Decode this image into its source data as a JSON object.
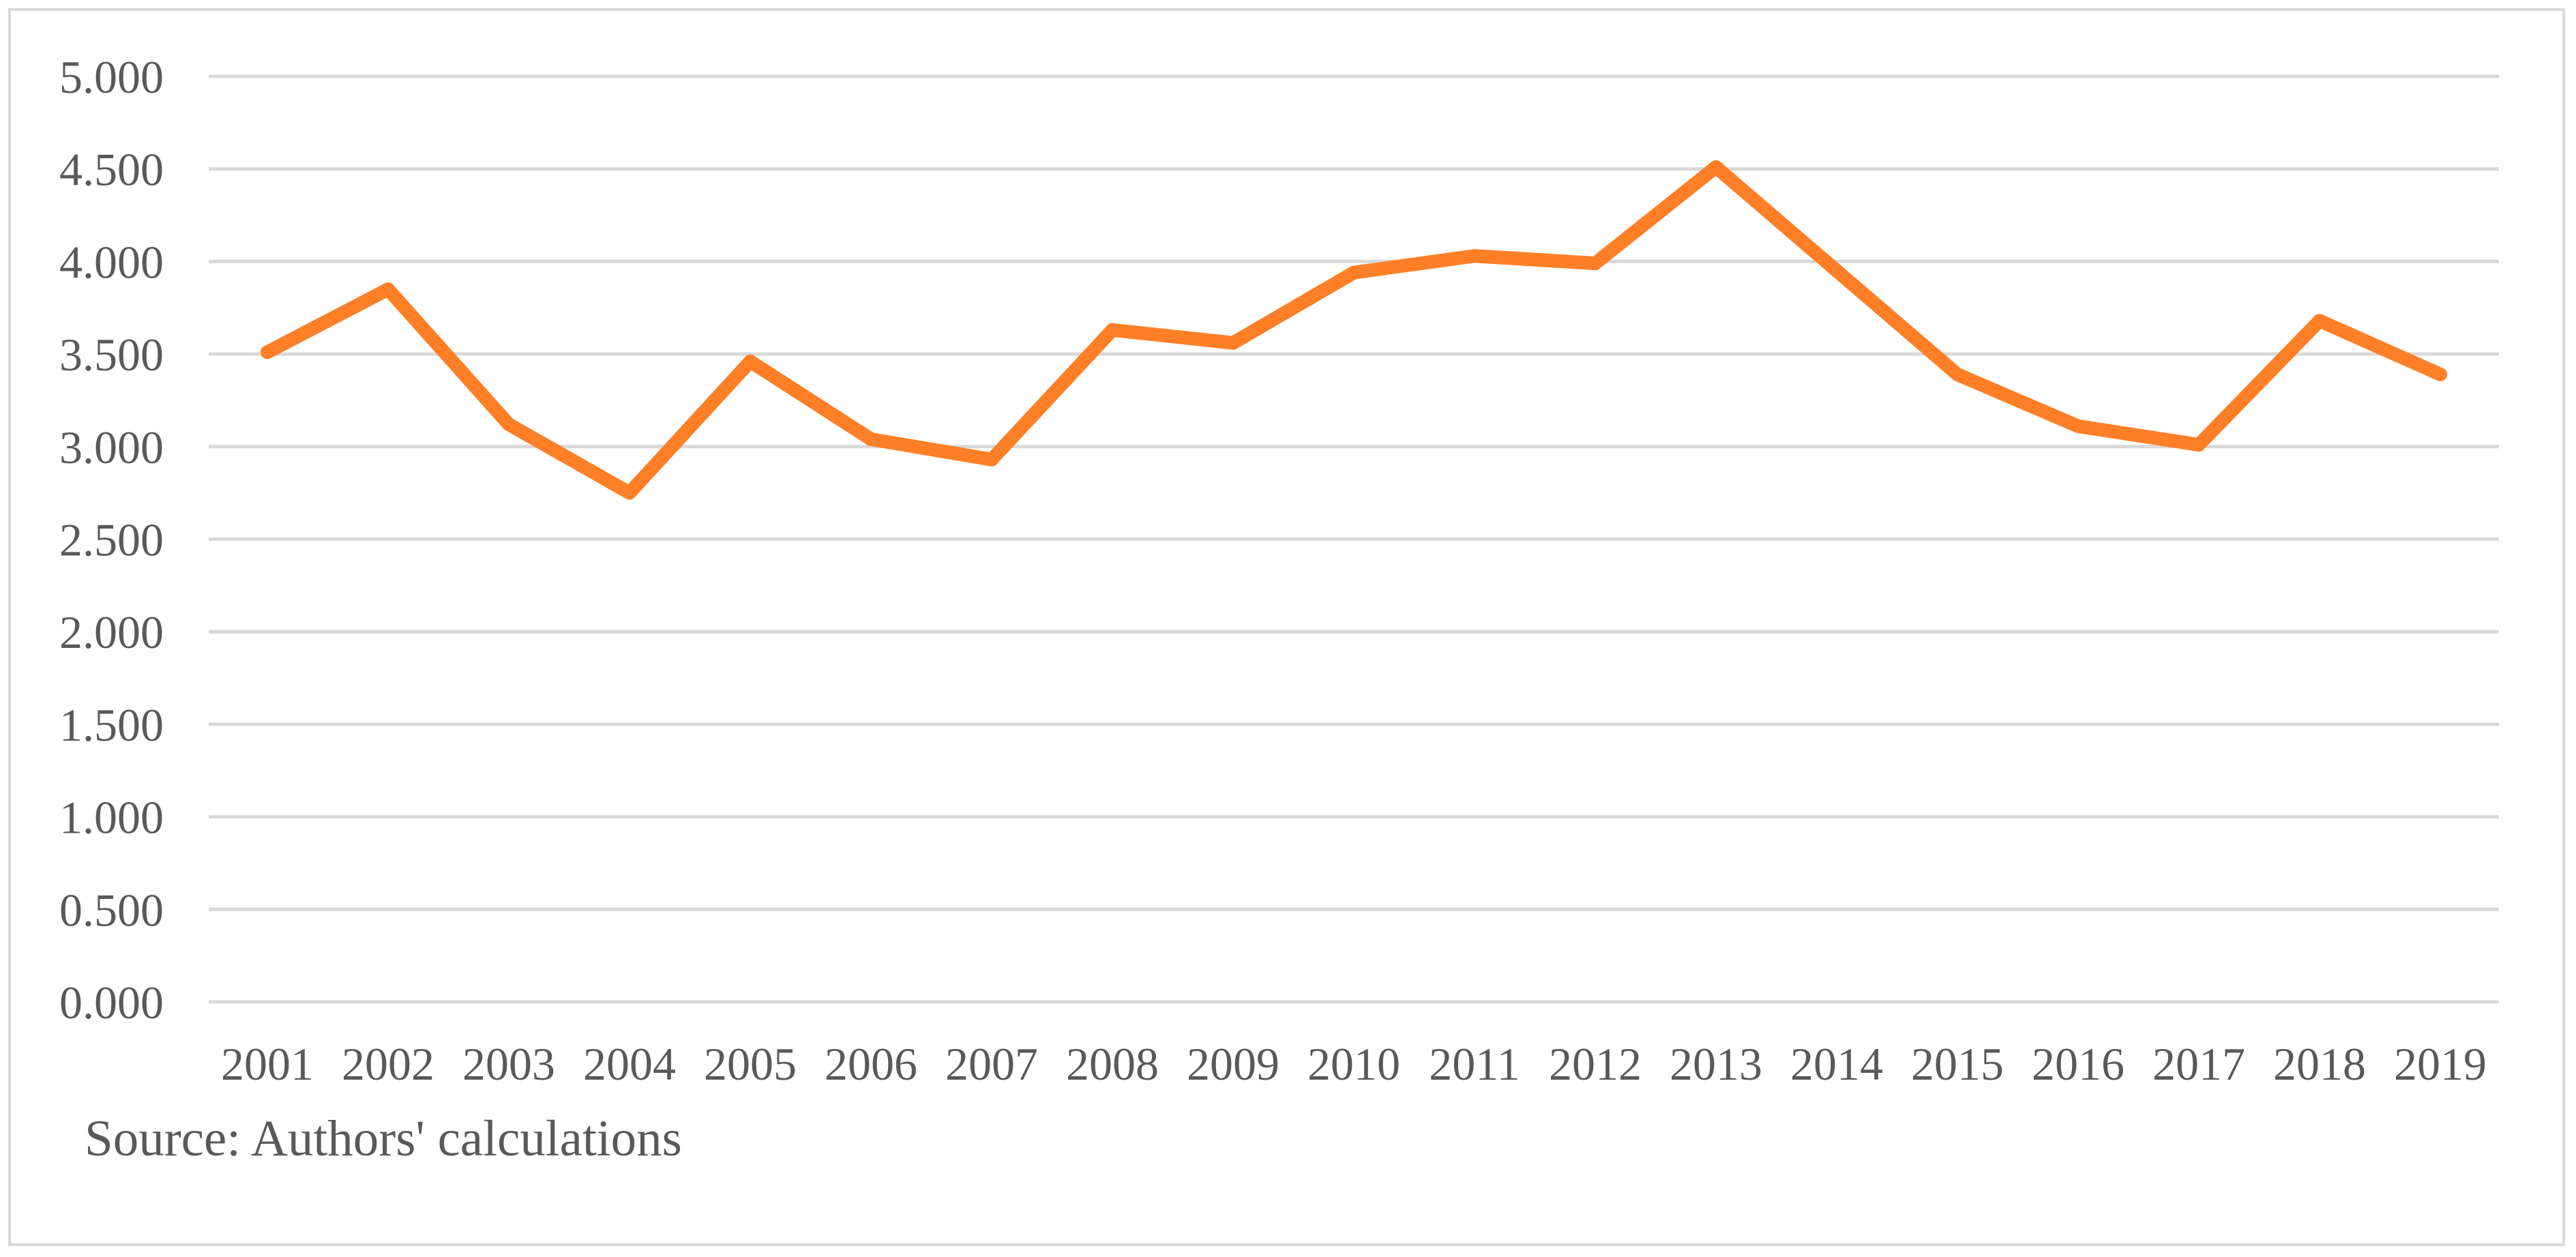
{
  "chart_data": {
    "type": "line",
    "title": "",
    "xlabel": "",
    "ylabel": "",
    "ylim": [
      0,
      5
    ],
    "y_ticks": [
      "0.000",
      "0.500",
      "1.000",
      "1.500",
      "2.000",
      "2.500",
      "3.000",
      "3.500",
      "4.000",
      "4.500",
      "5.000"
    ],
    "categories": [
      "2001",
      "2002",
      "2003",
      "2004",
      "2005",
      "2006",
      "2007",
      "2008",
      "2009",
      "2010",
      "2011",
      "2012",
      "2013",
      "2014",
      "2015",
      "2016",
      "2017",
      "2018",
      "2019"
    ],
    "series": [
      {
        "color": "#ff7f27",
        "values": [
          3.51,
          3.85,
          3.12,
          2.75,
          3.46,
          3.04,
          2.93,
          3.63,
          3.56,
          3.94,
          4.03,
          3.99,
          4.51,
          3.95,
          3.39,
          3.11,
          3.01,
          3.68,
          3.39
        ]
      }
    ],
    "grid": true,
    "legend": "none"
  },
  "note": {
    "source": "Source: Authors' calculations"
  },
  "colors": {
    "line": "#ff7f27",
    "grid": "#d9d9d9",
    "text": "#595959",
    "frame": "#d9d9d9"
  }
}
